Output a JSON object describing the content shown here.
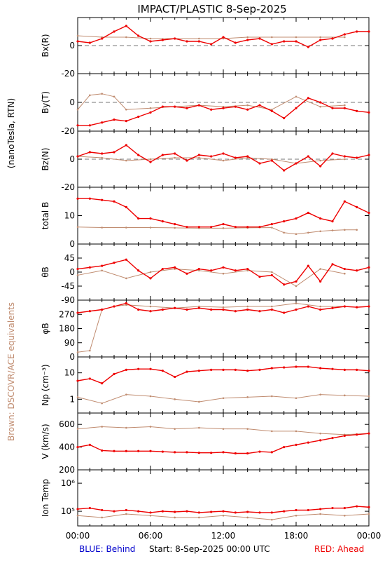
{
  "title": "IMPACT/PLASTIC     8-Sep-2025",
  "left_label_units": "(nanoTesla, RTN)",
  "left_label_brown": "Brown: DSCOVR/ACE equivalents",
  "footer": {
    "blue": "BLUE: Behind",
    "start": "Start:   8-Sep-2025 00:00 UTC",
    "red": "RED: Ahead"
  },
  "colors": {
    "ahead": "#ee0000",
    "brown": "#c08c70",
    "blue": "#0000cc",
    "axis": "#000000"
  },
  "x_ticks": [
    "00:00",
    "06:00",
    "12:00",
    "18:00",
    "00:00"
  ],
  "chart_data": [
    {
      "type": "scatter",
      "ylabel": "Bx(R)",
      "ylim": [
        -20,
        20
      ],
      "ytick_values": [
        0,
        -20
      ],
      "ytick_labels": [
        "0",
        "-20"
      ],
      "zero_line": true,
      "series": [
        {
          "name": "Ahead",
          "x": [
            0,
            1,
            2,
            3,
            4,
            5,
            6,
            7,
            8,
            9,
            10,
            11,
            12,
            13,
            14,
            15,
            16,
            17,
            18,
            19,
            20,
            21,
            22,
            23,
            24
          ],
          "y": [
            3,
            2,
            5,
            10,
            14,
            7,
            3,
            4,
            5,
            3,
            3,
            1,
            6,
            2,
            4,
            5,
            1,
            3,
            3,
            -1,
            4,
            5,
            8,
            10,
            10
          ]
        },
        {
          "name": "DSCOVR/ACE",
          "x": [
            0,
            2,
            4,
            6,
            8,
            10,
            12,
            14,
            16,
            18,
            20,
            22
          ],
          "y": [
            7,
            6,
            6,
            5,
            5,
            5,
            5,
            6,
            6,
            6,
            6,
            6
          ]
        }
      ]
    },
    {
      "type": "scatter",
      "ylabel": "By(T)",
      "ylim": [
        -20,
        20
      ],
      "ytick_values": [
        0,
        -20
      ],
      "ytick_labels": [
        "0",
        "-20"
      ],
      "zero_line": true,
      "series": [
        {
          "name": "Ahead",
          "x": [
            0,
            1,
            2,
            3,
            4,
            5,
            6,
            7,
            8,
            9,
            10,
            11,
            12,
            13,
            14,
            15,
            16,
            17,
            18,
            19,
            20,
            21,
            22,
            23,
            24
          ],
          "y": [
            -16,
            -16,
            -14,
            -12,
            -13,
            -10,
            -7,
            -3,
            -3,
            -4,
            -2,
            -5,
            -4,
            -3,
            -5,
            -2,
            -6,
            -11,
            -4,
            3,
            0,
            -4,
            -4,
            -6,
            -7
          ]
        },
        {
          "name": "DSCOVR/ACE",
          "x": [
            0,
            1,
            2,
            3,
            4,
            6,
            8,
            10,
            12,
            14,
            16,
            18,
            20,
            22
          ],
          "y": [
            -5,
            5,
            6,
            4,
            -5,
            -4,
            -3,
            -2,
            -3,
            -2,
            -5,
            4,
            -3,
            -2
          ]
        }
      ]
    },
    {
      "type": "scatter",
      "ylabel": "Bz(N)",
      "ylim": [
        -20,
        20
      ],
      "ytick_values": [
        0,
        -20
      ],
      "ytick_labels": [
        "0",
        "-20"
      ],
      "zero_line": true,
      "series": [
        {
          "name": "Ahead",
          "x": [
            0,
            1,
            2,
            3,
            4,
            5,
            6,
            7,
            8,
            9,
            10,
            11,
            12,
            13,
            14,
            15,
            16,
            17,
            18,
            19,
            20,
            21,
            22,
            23,
            24
          ],
          "y": [
            2,
            5,
            4,
            5,
            10,
            3,
            -2,
            3,
            4,
            -1,
            3,
            2,
            4,
            1,
            2,
            -3,
            -1,
            -8,
            -3,
            2,
            -5,
            4,
            2,
            1,
            3
          ]
        },
        {
          "name": "DSCOVR/ACE",
          "x": [
            0,
            2,
            4,
            6,
            8,
            10,
            12,
            14,
            16,
            18,
            20,
            22
          ],
          "y": [
            2,
            1,
            -1,
            0,
            1,
            1,
            -1,
            1,
            0,
            -3,
            -1,
            0
          ]
        }
      ]
    },
    {
      "type": "line",
      "ylabel": "total B",
      "ylim": [
        0,
        20
      ],
      "ytick_values": [
        10,
        0
      ],
      "ytick_labels": [
        "10",
        "0"
      ],
      "zero_line": false,
      "series": [
        {
          "name": "Ahead",
          "x": [
            0,
            1,
            2,
            3,
            4,
            5,
            6,
            7,
            8,
            9,
            10,
            11,
            12,
            13,
            14,
            15,
            16,
            17,
            18,
            19,
            20,
            21,
            22,
            23,
            24
          ],
          "y": [
            16,
            16,
            15.5,
            15,
            13,
            9,
            9,
            8,
            7,
            6,
            6,
            6,
            7,
            6,
            6,
            6,
            7,
            8,
            9,
            11,
            9,
            8,
            15,
            13,
            11
          ]
        },
        {
          "name": "DSCOVR/ACE",
          "x": [
            0,
            2,
            4,
            6,
            8,
            10,
            12,
            14,
            16,
            17,
            18,
            19,
            20,
            21,
            22,
            23
          ],
          "y": [
            6,
            5.8,
            5.8,
            5.8,
            5.7,
            5.6,
            5.6,
            5.7,
            5.8,
            4,
            3.5,
            4,
            4.5,
            4.8,
            5,
            5
          ]
        }
      ]
    },
    {
      "type": "scatter",
      "ylabel": "θB",
      "ylim": [
        -90,
        90
      ],
      "ytick_values": [
        45,
        0,
        -45,
        -90
      ],
      "ytick_labels": [
        "45",
        "0",
        "-45",
        "-90"
      ],
      "zero_line": false,
      "series": [
        {
          "name": "Ahead",
          "x": [
            0,
            1,
            2,
            3,
            4,
            5,
            6,
            7,
            8,
            9,
            10,
            11,
            12,
            13,
            14,
            15,
            16,
            17,
            18,
            19,
            20,
            21,
            22,
            23,
            24
          ],
          "y": [
            10,
            15,
            20,
            30,
            40,
            5,
            -20,
            10,
            15,
            -5,
            10,
            5,
            15,
            5,
            10,
            -15,
            -10,
            -40,
            -30,
            20,
            -30,
            25,
            10,
            5,
            15
          ]
        },
        {
          "name": "DSCOVR/ACE",
          "x": [
            0,
            2,
            4,
            6,
            8,
            10,
            12,
            14,
            16,
            18,
            20,
            22
          ],
          "y": [
            -10,
            5,
            -20,
            0,
            10,
            5,
            -5,
            5,
            0,
            -45,
            10,
            -5
          ]
        }
      ]
    },
    {
      "type": "scatter",
      "ylabel": "φB",
      "ylim": [
        0,
        360
      ],
      "ytick_values": [
        270,
        180,
        90,
        0
      ],
      "ytick_labels": [
        "270",
        "180",
        "90",
        "0"
      ],
      "zero_line": false,
      "series": [
        {
          "name": "Ahead",
          "x": [
            0,
            1,
            2,
            3,
            4,
            5,
            6,
            7,
            8,
            9,
            10,
            11,
            12,
            13,
            14,
            15,
            16,
            17,
            18,
            19,
            20,
            21,
            22,
            23,
            24
          ],
          "y": [
            280,
            290,
            300,
            320,
            340,
            300,
            290,
            300,
            310,
            300,
            310,
            300,
            300,
            290,
            300,
            290,
            300,
            280,
            300,
            320,
            300,
            310,
            320,
            315,
            320
          ]
        },
        {
          "name": "DSCOVR/ACE",
          "x": [
            0,
            1,
            2,
            3,
            4,
            6,
            8,
            10,
            12,
            14,
            16,
            18,
            20,
            22
          ],
          "y": [
            30,
            40,
            300,
            320,
            330,
            320,
            310,
            320,
            315,
            320,
            320,
            340,
            320,
            320
          ]
        }
      ]
    },
    {
      "type": "line",
      "ylabel": "Np (cm⁻³)",
      "yscale": "log",
      "ylim": [
        0.3,
        40
      ],
      "ytick_values": [
        10,
        1
      ],
      "ytick_labels": [
        "10",
        "1"
      ],
      "zero_line": false,
      "series": [
        {
          "name": "Ahead",
          "x": [
            0,
            1,
            2,
            3,
            4,
            5,
            6,
            7,
            8,
            9,
            10,
            11,
            12,
            13,
            14,
            15,
            16,
            17,
            18,
            19,
            20,
            21,
            22,
            23,
            24
          ],
          "y": [
            5,
            6,
            4,
            9,
            13,
            14,
            14,
            12,
            7,
            11,
            12,
            13,
            13,
            13,
            12,
            13,
            15,
            16,
            17,
            17,
            15,
            14,
            13,
            13,
            12
          ]
        },
        {
          "name": "DSCOVR/ACE",
          "x": [
            0,
            2,
            4,
            6,
            8,
            10,
            12,
            14,
            16,
            18,
            20,
            22,
            24
          ],
          "y": [
            1.2,
            0.7,
            1.5,
            1.3,
            1,
            0.8,
            1.1,
            1.2,
            1.3,
            1.1,
            1.5,
            1.4,
            1.3
          ]
        }
      ]
    },
    {
      "type": "line",
      "ylabel": "V (km/s)",
      "ylim": [
        200,
        700
      ],
      "ytick_values": [
        600,
        400,
        200
      ],
      "ytick_labels": [
        "600",
        "400",
        "200"
      ],
      "zero_line": false,
      "series": [
        {
          "name": "Ahead",
          "x": [
            0,
            1,
            2,
            3,
            4,
            5,
            6,
            7,
            8,
            9,
            10,
            11,
            12,
            13,
            14,
            15,
            16,
            17,
            18,
            19,
            20,
            21,
            22,
            23,
            24
          ],
          "y": [
            400,
            420,
            370,
            365,
            365,
            365,
            365,
            360,
            355,
            355,
            350,
            350,
            355,
            345,
            345,
            360,
            355,
            400,
            420,
            440,
            460,
            480,
            500,
            510,
            520
          ]
        },
        {
          "name": "DSCOVR/ACE",
          "x": [
            0,
            2,
            4,
            6,
            8,
            10,
            12,
            14,
            16,
            18,
            20,
            22,
            24
          ],
          "y": [
            560,
            580,
            570,
            580,
            560,
            570,
            560,
            560,
            540,
            540,
            520,
            510,
            520
          ]
        }
      ]
    },
    {
      "type": "line",
      "ylabel": "Ion Temp",
      "yscale": "log",
      "ylim": [
        30000,
        3000000
      ],
      "ytick_values": [
        1000000,
        100000
      ],
      "ytick_labels": [
        "10⁶",
        "10⁵"
      ],
      "zero_line": false,
      "series": [
        {
          "name": "Ahead",
          "x": [
            0,
            1,
            2,
            3,
            4,
            5,
            6,
            7,
            8,
            9,
            10,
            11,
            12,
            13,
            14,
            15,
            16,
            17,
            18,
            19,
            20,
            21,
            22,
            23,
            24
          ],
          "y": [
            120000,
            130000,
            110000,
            100000,
            110000,
            100000,
            90000,
            100000,
            95000,
            100000,
            90000,
            95000,
            100000,
            90000,
            95000,
            90000,
            90000,
            100000,
            110000,
            110000,
            120000,
            130000,
            130000,
            150000,
            140000
          ]
        },
        {
          "name": "DSCOVR/ACE",
          "x": [
            0,
            2,
            4,
            6,
            8,
            10,
            12,
            14,
            16,
            18,
            20,
            22,
            24
          ],
          "y": [
            70000,
            60000,
            80000,
            70000,
            60000,
            60000,
            70000,
            60000,
            50000,
            70000,
            80000,
            70000,
            80000
          ]
        }
      ]
    }
  ]
}
